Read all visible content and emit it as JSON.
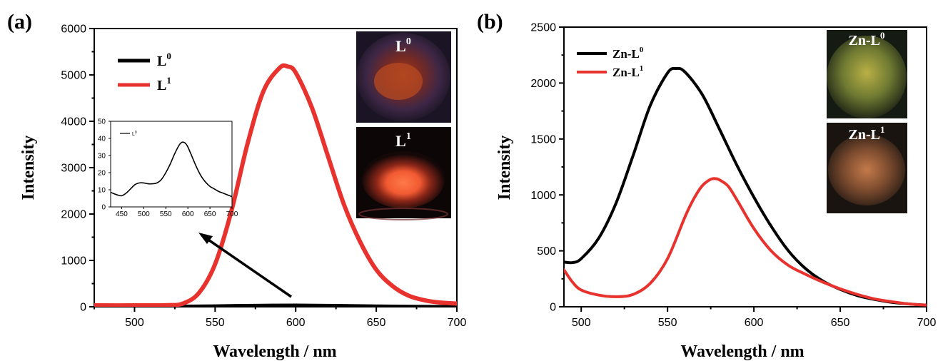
{
  "chart_data": [
    {
      "panel": "(a)",
      "type": "line",
      "xlabel": "Wavelength / nm",
      "ylabel": "Intensity",
      "xlim": [
        475,
        700
      ],
      "ylim": [
        0,
        6000
      ],
      "xticks": [
        500,
        550,
        600,
        650,
        700
      ],
      "yticks": [
        0,
        1000,
        2000,
        3000,
        4000,
        5000,
        6000
      ],
      "legend_position": "top-left",
      "grid": false,
      "series": [
        {
          "name": "L",
          "sup": "0",
          "color": "#000000",
          "x": [
            475,
            500,
            525,
            550,
            575,
            600,
            625,
            650,
            675,
            700
          ],
          "y": [
            10,
            13,
            14,
            22,
            33,
            38,
            30,
            20,
            12,
            8
          ]
        },
        {
          "name": "L",
          "sup": "1",
          "color": "#e8322e",
          "x": [
            475,
            500,
            520,
            530,
            540,
            550,
            560,
            570,
            580,
            590,
            595,
            600,
            610,
            620,
            630,
            640,
            650,
            660,
            670,
            680,
            690,
            700
          ],
          "y": [
            30,
            30,
            35,
            70,
            300,
            920,
            2050,
            3500,
            4650,
            5150,
            5180,
            5050,
            4300,
            3250,
            2200,
            1400,
            800,
            450,
            240,
            140,
            90,
            70
          ]
        }
      ],
      "inset": {
        "type": "line",
        "xlim": [
          425,
          700
        ],
        "ylim": [
          0,
          50
        ],
        "xticks": [
          450,
          500,
          550,
          600,
          650,
          700
        ],
        "yticks": [
          0,
          10,
          20,
          30,
          40,
          50
        ],
        "legend": {
          "name": "L",
          "sup": "0"
        },
        "series": {
          "color": "#000000",
          "x": [
            425,
            440,
            450,
            460,
            470,
            480,
            490,
            500,
            510,
            520,
            530,
            540,
            550,
            560,
            570,
            580,
            585,
            590,
            595,
            600,
            610,
            620,
            630,
            640,
            650,
            660,
            670,
            680,
            690,
            700
          ],
          "y": [
            8.5,
            7,
            6.5,
            8,
            10.5,
            13,
            14,
            14,
            13.5,
            13.5,
            14,
            16,
            20,
            25,
            31,
            36,
            37.5,
            37.8,
            37,
            35,
            29,
            23,
            18,
            14.5,
            12,
            10.5,
            9,
            8,
            7,
            6
          ]
        }
      },
      "photo_labels": [
        {
          "base": "L",
          "sup": "0"
        },
        {
          "base": "L",
          "sup": "1"
        }
      ]
    },
    {
      "panel": "(b)",
      "type": "line",
      "xlabel": "Wavelength / nm",
      "ylabel": "Intensity",
      "xlim": [
        490,
        700
      ],
      "ylim": [
        0,
        2500
      ],
      "xticks": [
        500,
        550,
        600,
        650,
        700
      ],
      "yticks": [
        0,
        500,
        1000,
        1500,
        2000,
        2500
      ],
      "legend_position": "top-left",
      "grid": false,
      "series": [
        {
          "name": "Zn-L",
          "sup": "0",
          "color": "#000000",
          "x": [
            490,
            495,
            500,
            510,
            520,
            530,
            540,
            550,
            555,
            560,
            570,
            580,
            590,
            600,
            610,
            620,
            630,
            640,
            650,
            660,
            670,
            680,
            690,
            700
          ],
          "y": [
            400,
            395,
            430,
            610,
            920,
            1350,
            1800,
            2090,
            2130,
            2100,
            1900,
            1590,
            1270,
            980,
            720,
            500,
            340,
            230,
            155,
            100,
            65,
            40,
            25,
            15
          ]
        },
        {
          "name": "Zn-L",
          "sup": "1",
          "color": "#e8322e",
          "x": [
            490,
            495,
            500,
            510,
            520,
            530,
            540,
            550,
            560,
            565,
            570,
            575,
            578,
            580,
            585,
            590,
            600,
            610,
            620,
            630,
            640,
            650,
            660,
            670,
            680,
            690,
            700
          ],
          "y": [
            330,
            220,
            150,
            105,
            90,
            110,
            210,
            430,
            800,
            960,
            1080,
            1140,
            1145,
            1135,
            1080,
            960,
            700,
            500,
            370,
            290,
            220,
            160,
            110,
            70,
            45,
            25,
            15
          ]
        }
      ],
      "photo_labels": [
        {
          "base": "Zn-L",
          "sup": "0"
        },
        {
          "base": "Zn-L",
          "sup": "1"
        }
      ]
    }
  ],
  "colors": {
    "black_series": "#000000",
    "red_series": "#e8322e",
    "photo_bg": "#14101c"
  }
}
